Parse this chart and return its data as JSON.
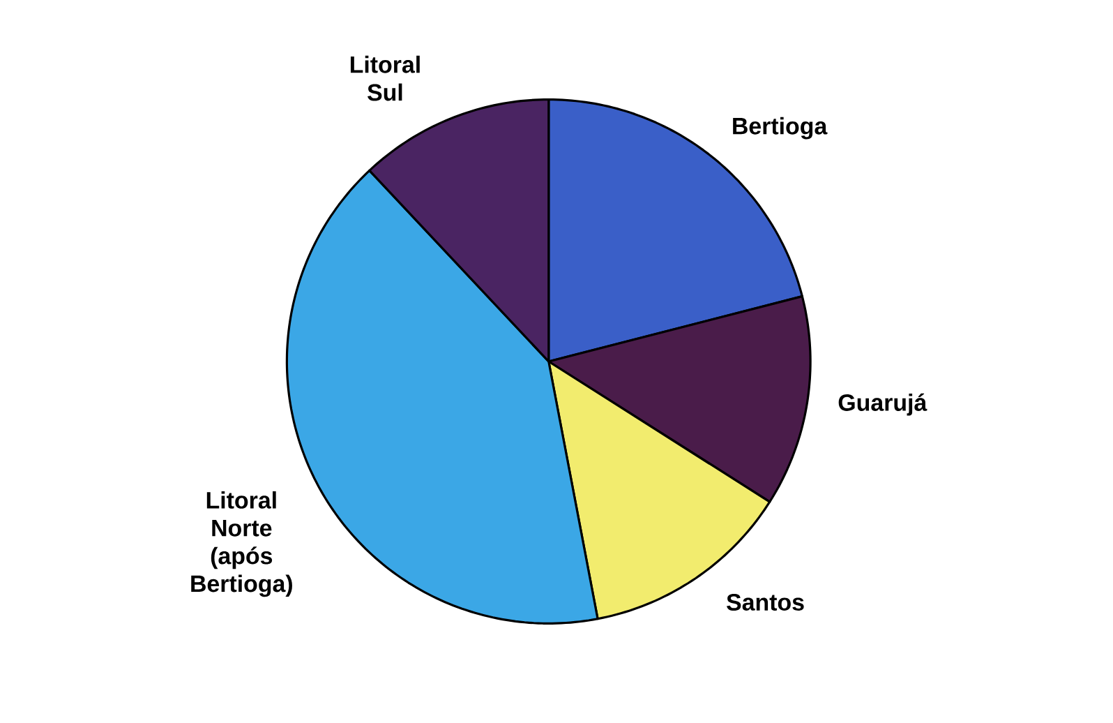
{
  "chart_data": {
    "type": "pie",
    "categories": [
      "Bertioga",
      "Guarujá",
      "Santos",
      "Litoral Norte (após Bertioga)",
      "Litoral Sul"
    ],
    "values": [
      21,
      13,
      13,
      41,
      12
    ],
    "colors": [
      "#3a5fc8",
      "#4a1c4a",
      "#f2ec6e",
      "#3ba7e6",
      "#4a2462"
    ]
  }
}
